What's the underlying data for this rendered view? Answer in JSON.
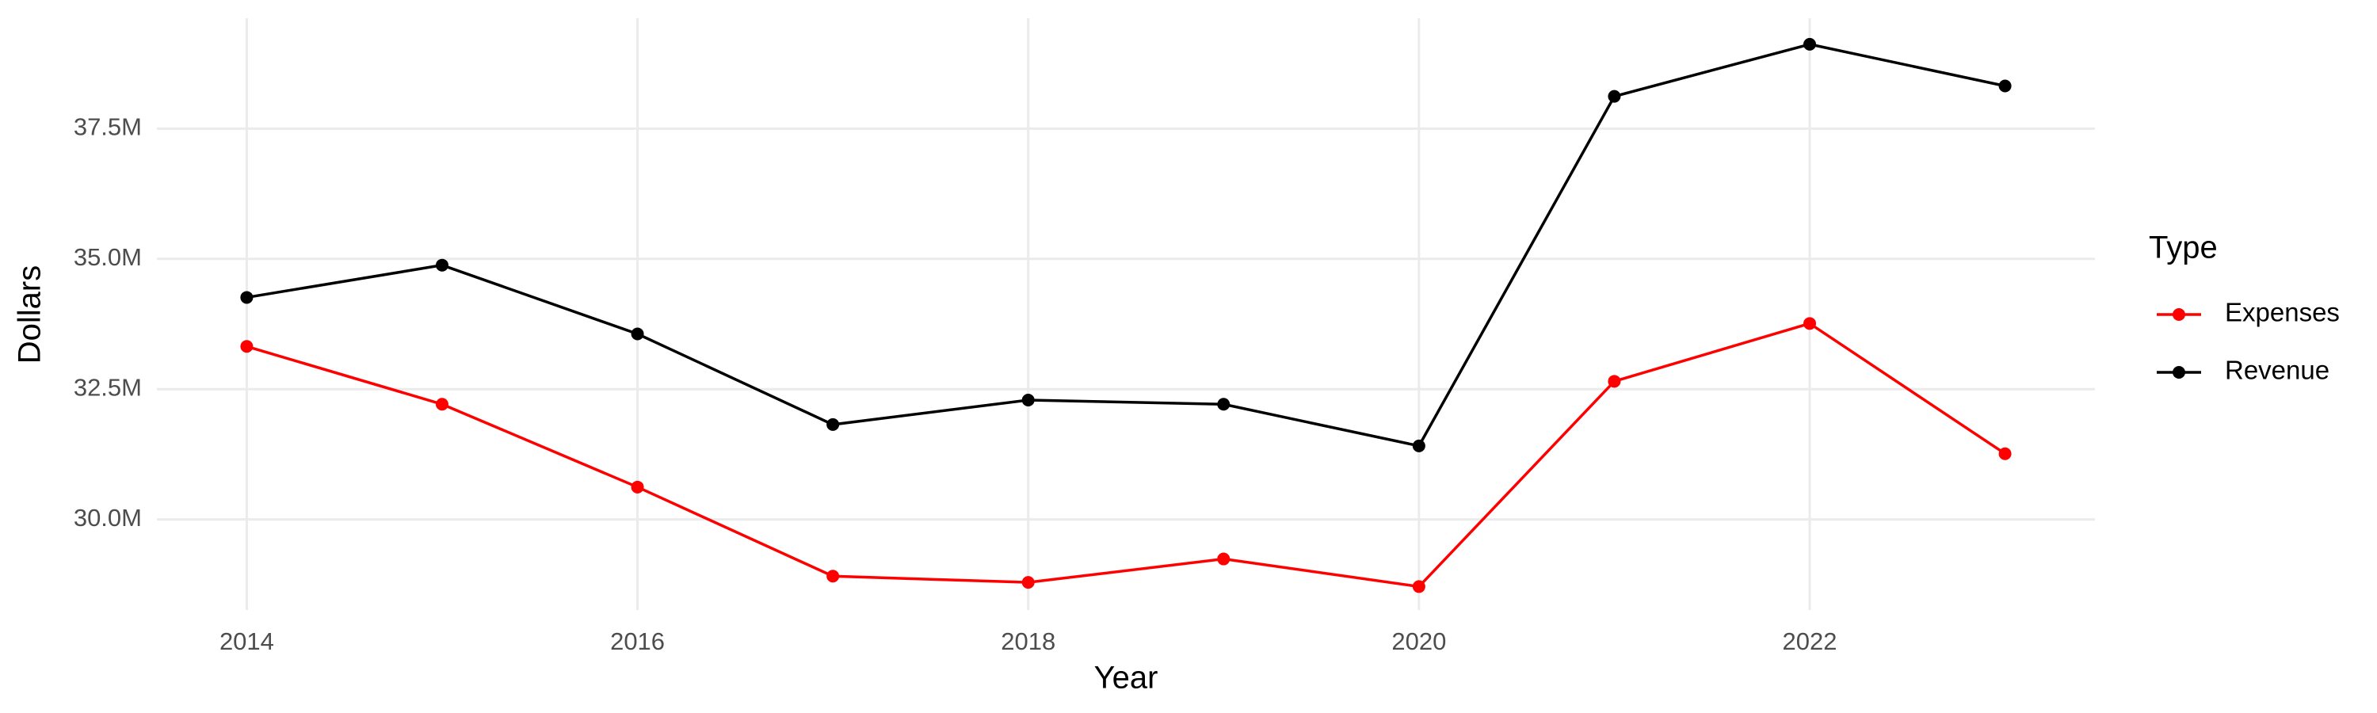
{
  "chart_data": {
    "type": "line",
    "x_label": "Year",
    "y_label": "Dollars",
    "x": [
      2014,
      2015,
      2016,
      2017,
      2018,
      2019,
      2020,
      2021,
      2022,
      2023
    ],
    "series": [
      {
        "name": "Expenses",
        "color": "#ff0000",
        "values": [
          33320000,
          32210000,
          30620000,
          28910000,
          28790000,
          29240000,
          28710000,
          32650000,
          33760000,
          31260000
        ]
      },
      {
        "name": "Revenue",
        "color": "#000000",
        "values": [
          34260000,
          34880000,
          33560000,
          31820000,
          32290000,
          32210000,
          31410000,
          38120000,
          39120000,
          38320000
        ]
      }
    ],
    "legend_title": "Type",
    "legend": "right",
    "xlim": [
      2013.54,
      2023.46
    ],
    "xticks": [
      2014,
      2016,
      2018,
      2020,
      2022
    ],
    "ylim": [
      28260000,
      39620000
    ],
    "yticks": [
      {
        "value": 30000000,
        "label": "30.0M"
      },
      {
        "value": 32500000,
        "label": "32.5M"
      },
      {
        "value": 35000000,
        "label": "35.0M"
      },
      {
        "value": 37500000,
        "label": "37.5M"
      }
    ],
    "grid": true
  }
}
